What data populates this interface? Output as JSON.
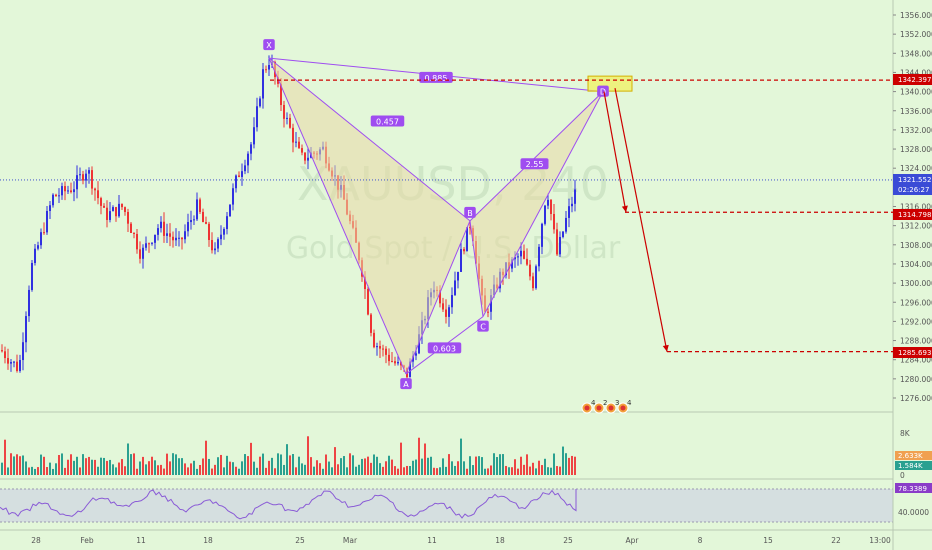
{
  "watermark": {
    "symbol": "XAUUSD, 240",
    "name": "Gold Spot / U.S. Dollar"
  },
  "price_axis": {
    "ticks": [
      "1356.000",
      "1352.000",
      "1348.000",
      "1344.000",
      "1340.000",
      "1336.000",
      "1332.000",
      "1328.000",
      "1324.000",
      "1320.000",
      "1316.000",
      "1312.000",
      "1308.000",
      "1304.000",
      "1300.000",
      "1296.000",
      "1292.000",
      "1288.000",
      "1284.000",
      "1280.000",
      "1276.000"
    ]
  },
  "price_labels": {
    "target1": "1342.397",
    "current": "1321.552",
    "countdown": "02:26:27",
    "target2": "1314.798",
    "target3": "1285.693"
  },
  "volume_axis": {
    "tick": "8K",
    "label_a": "2.633K",
    "label_b": "1.584K",
    "zero": "0"
  },
  "rsi_axis": {
    "value": "78.3389",
    "tick": "40.0000"
  },
  "time_axis": {
    "labels": [
      "28",
      "Feb",
      "11",
      "18",
      "25",
      "Mar",
      "11",
      "18",
      "25",
      "Apr",
      "8",
      "15",
      "22",
      "13:00"
    ]
  },
  "pattern": {
    "points": {
      "X": "X",
      "A": "A",
      "B": "B",
      "C": "C",
      "D": "D"
    },
    "ratios": {
      "XD": "0.885",
      "XB": "0.457",
      "AC": "0.603",
      "BD": "2.55"
    }
  },
  "events": [
    "4",
    "2",
    "3",
    "4"
  ],
  "colors": {
    "bull": "#3030e0",
    "bear": "#ee3333",
    "pattern": "#9f4df0",
    "target": "#cc0000",
    "current": "#5060d0",
    "background": "#e3f7d9"
  },
  "chart_data": {
    "type": "candlestick",
    "title": "XAUUSD, 240",
    "subtitle": "Gold Spot / U.S. Dollar",
    "ylim": [
      1274,
      1360
    ],
    "x_labels": [
      "28",
      "Feb",
      "11",
      "18",
      "25",
      "Mar",
      "11",
      "18",
      "25",
      "Apr",
      "8",
      "15",
      "22",
      "13:00"
    ],
    "pattern_points": [
      {
        "label": "X",
        "price": 1347
      },
      {
        "label": "A",
        "price": 1281
      },
      {
        "label": "B",
        "price": 1313
      },
      {
        "label": "C",
        "price": 1293
      },
      {
        "label": "D",
        "price": 1340
      }
    ],
    "pattern_ratios": [
      0.885,
      0.457,
      0.603,
      2.55
    ],
    "levels": [
      1342.397,
      1321.552,
      1314.798,
      1285.693
    ],
    "projection": [
      {
        "from": 1340,
        "to": 1314.798
      },
      {
        "from": 1340,
        "to": 1285.693
      }
    ],
    "rsi_last": 78.3389
  }
}
